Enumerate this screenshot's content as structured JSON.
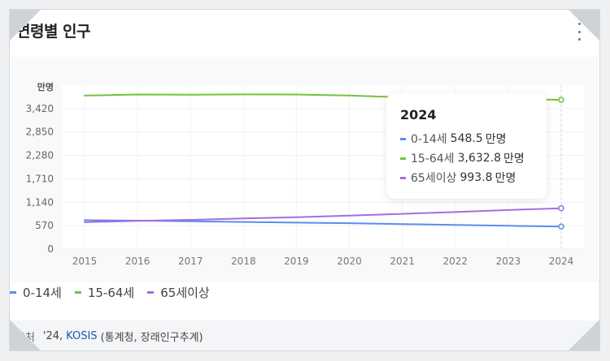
{
  "title": "연령별 인구",
  "chart_data": {
    "type": "line",
    "unit_label": "만명",
    "x": [
      2015,
      2016,
      2017,
      2018,
      2019,
      2020,
      2021,
      2022,
      2023,
      2024
    ],
    "y_ticks": [
      0,
      570,
      1140,
      1710,
      2280,
      2850,
      3420
    ],
    "y_tick_labels": [
      "0",
      "570",
      "1,140",
      "1,710",
      "2,280",
      "2,850",
      "3,420"
    ],
    "ylim": [
      0,
      3990
    ],
    "grid": true,
    "highlight_x": 2024,
    "series": [
      {
        "name": "0-14세",
        "color": "#5b8def",
        "values": [
          703,
          692,
          676,
          659,
          643,
          630,
          608,
          587,
          567,
          548.5
        ]
      },
      {
        "name": "15-64세",
        "color": "#71c43b",
        "values": [
          3737,
          3763,
          3757,
          3765,
          3763,
          3738,
          3694,
          3668,
          3657,
          3632.8
        ]
      },
      {
        "name": "65세이상",
        "color": "#a46ee0",
        "values": [
          654,
          686,
          712,
          744,
          775,
          815,
          857,
          901,
          950,
          993.8
        ]
      }
    ],
    "tooltip": {
      "year": "2024",
      "unit": "만명",
      "rows": [
        {
          "name": "0-14세",
          "value": "548.5"
        },
        {
          "name": "15-64세",
          "value": "3,632.8"
        },
        {
          "name": "65세이상",
          "value": "993.8"
        }
      ]
    }
  },
  "footer": {
    "label": "출처",
    "year": "'24,",
    "link": "KOSIS",
    "note": "(통계청, 장래인구추계)"
  }
}
